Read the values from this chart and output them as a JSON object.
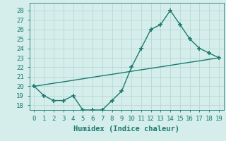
{
  "x": [
    0,
    1,
    2,
    3,
    4,
    5,
    6,
    7,
    8,
    9,
    10,
    11,
    12,
    13,
    14,
    15,
    16,
    17,
    18,
    19
  ],
  "y_main": [
    20,
    19,
    18.5,
    18.5,
    19,
    17.5,
    17.5,
    17.5,
    18.5,
    19.5,
    22,
    24,
    26,
    26.5,
    28,
    26.5,
    25,
    24,
    23.5,
    23
  ],
  "y_trend": [
    20.0,
    20.16,
    20.32,
    20.47,
    20.63,
    20.79,
    20.95,
    21.11,
    21.26,
    21.42,
    21.58,
    21.74,
    21.89,
    22.05,
    22.21,
    22.37,
    22.53,
    22.68,
    22.84,
    23.0
  ],
  "line_color": "#1a7a6e",
  "bg_color": "#d5eeeb",
  "grid_color": "#b8d8d4",
  "xlabel": "Humidex (Indice chaleur)",
  "ylabel_vals": [
    18,
    19,
    20,
    21,
    22,
    23,
    24,
    25,
    26,
    27,
    28
  ],
  "ylim": [
    17.5,
    28.8
  ],
  "xlim": [
    -0.5,
    19.5
  ],
  "xtick_labels": [
    "0",
    "1",
    "2",
    "3",
    "4",
    "5",
    "6",
    "7",
    "8",
    "9",
    "10",
    "11",
    "12",
    "13",
    "14",
    "15",
    "16",
    "17",
    "18",
    "19"
  ],
  "marker_size": 4,
  "line_width": 1.0,
  "font_size": 6.5
}
